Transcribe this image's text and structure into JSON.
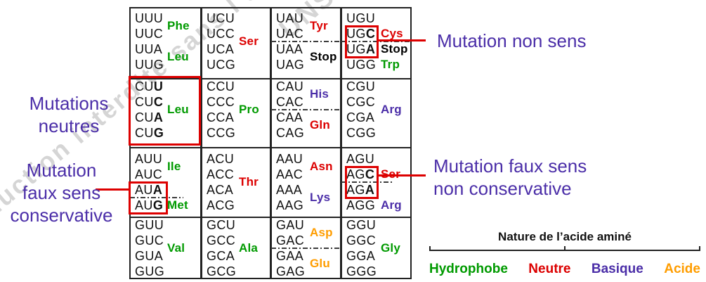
{
  "colors": {
    "hydrophobe": "#009a00",
    "neutre": "#dc0000",
    "basique": "#4b2ea8",
    "acide": "#ff9d00",
    "stop": "#000000",
    "annotation": "#4b2ea8",
    "highlight": "#dd0000",
    "watermark": "#cbcbcb"
  },
  "watermark": {
    "fragments": [
      {
        "text": "roduction interdite sans l’accord"
      },
      {
        "text": "UNS"
      }
    ]
  },
  "annotations": {
    "non_sens": {
      "lines": [
        "Mutation non sens"
      ]
    },
    "neutres": {
      "lines": [
        "Mutations",
        "neutres"
      ]
    },
    "faux_sens_conservative": {
      "lines": [
        "Mutation",
        "faux sens",
        "conservative"
      ]
    },
    "faux_sens_non_conservative": {
      "lines": [
        "Mutation faux sens",
        "non conservative"
      ]
    }
  },
  "legend": {
    "title": "Nature de l’acide aminé",
    "items": [
      {
        "label": "Hydrophobe",
        "category": "hydrophobe"
      },
      {
        "label": "Neutre",
        "category": "neutre"
      },
      {
        "label": "Basique",
        "category": "basique"
      },
      {
        "label": "Acide",
        "category": "acide"
      }
    ]
  },
  "codon_table": {
    "cells": [
      {
        "row": 1,
        "col": 1,
        "codons": [
          {
            "t": "UUU"
          },
          {
            "t": "UUC"
          },
          {
            "t": "UUA"
          },
          {
            "t": "UUG"
          }
        ],
        "labels": [
          {
            "t": "Phe",
            "cat": "hydrophobe",
            "pos": "p12"
          },
          {
            "t": "Leu",
            "cat": "hydrophobe",
            "pos": "p34"
          }
        ]
      },
      {
        "row": 1,
        "col": 2,
        "codons": [
          {
            "t": "UCU"
          },
          {
            "t": "UCC"
          },
          {
            "t": "UCA"
          },
          {
            "t": "UCG"
          }
        ],
        "labels": [
          {
            "t": "Ser",
            "cat": "neutre",
            "pos": "mid"
          }
        ]
      },
      {
        "row": 1,
        "col": 3,
        "codons": [
          {
            "t": "UAU"
          },
          {
            "t": "UAC"
          },
          {
            "t": "UAA"
          },
          {
            "t": "UAG"
          }
        ],
        "labels": [
          {
            "t": "Tyr",
            "cat": "neutre",
            "pos": "p12"
          },
          {
            "t": "Stop",
            "cat": "stop",
            "pos": "p34"
          }
        ],
        "divider_after": 2
      },
      {
        "row": 1,
        "col": 4,
        "codons": [
          {
            "t": "UGU"
          },
          {
            "t": "UGC",
            "bold_last": true
          },
          {
            "t": "UGA",
            "bold_last": true
          },
          {
            "t": "UGG"
          }
        ],
        "labels": [
          {
            "t": "Cys",
            "cat": "neutre",
            "pos": "l2"
          },
          {
            "t": "Stop",
            "cat": "stop",
            "pos": "l3"
          },
          {
            "t": "Trp",
            "cat": "hydrophobe",
            "pos": "l4"
          }
        ],
        "divider_after": 2,
        "red_box": {
          "lines": [
            2,
            3
          ]
        }
      },
      {
        "row": 2,
        "col": 1,
        "codons": [
          {
            "t": "CUU",
            "bold_last": true
          },
          {
            "t": "CUC",
            "bold_last": true
          },
          {
            "t": "CUA",
            "bold_last": true
          },
          {
            "t": "CUG",
            "bold_last": true
          }
        ],
        "labels": [
          {
            "t": "Leu",
            "cat": "hydrophobe",
            "pos": "mid"
          }
        ],
        "red_box": "all"
      },
      {
        "row": 2,
        "col": 2,
        "codons": [
          {
            "t": "CCU"
          },
          {
            "t": "CCC"
          },
          {
            "t": "CCA"
          },
          {
            "t": "CCG"
          }
        ],
        "labels": [
          {
            "t": "Pro",
            "cat": "hydrophobe",
            "pos": "mid"
          }
        ]
      },
      {
        "row": 2,
        "col": 3,
        "codons": [
          {
            "t": "CAU"
          },
          {
            "t": "CAC"
          },
          {
            "t": "CAA"
          },
          {
            "t": "CAG"
          }
        ],
        "labels": [
          {
            "t": "His",
            "cat": "basique",
            "pos": "p12"
          },
          {
            "t": "Gln",
            "cat": "neutre",
            "pos": "p34"
          }
        ],
        "divider_after": 2
      },
      {
        "row": 2,
        "col": 4,
        "codons": [
          {
            "t": "CGU"
          },
          {
            "t": "CGC"
          },
          {
            "t": "CGA"
          },
          {
            "t": "CGG"
          }
        ],
        "labels": [
          {
            "t": "Arg",
            "cat": "basique",
            "pos": "mid"
          }
        ]
      },
      {
        "row": 3,
        "col": 1,
        "codons": [
          {
            "t": "AUU"
          },
          {
            "t": "AUC"
          },
          {
            "t": "AUA",
            "bold_last": true
          },
          {
            "t": "AUG",
            "bold_last": true
          }
        ],
        "labels": [
          {
            "t": "Ile",
            "cat": "hydrophobe",
            "pos": "p12"
          },
          {
            "t": "Met",
            "cat": "hydrophobe",
            "pos": "l4"
          }
        ],
        "divider_after": 3,
        "red_box": {
          "lines": [
            3,
            4
          ]
        }
      },
      {
        "row": 3,
        "col": 2,
        "codons": [
          {
            "t": "ACU"
          },
          {
            "t": "ACC"
          },
          {
            "t": "ACA"
          },
          {
            "t": "ACG"
          }
        ],
        "labels": [
          {
            "t": "Thr",
            "cat": "neutre",
            "pos": "mid"
          }
        ]
      },
      {
        "row": 3,
        "col": 3,
        "codons": [
          {
            "t": "AAU"
          },
          {
            "t": "AAC"
          },
          {
            "t": "AAA"
          },
          {
            "t": "AAG"
          }
        ],
        "labels": [
          {
            "t": "Asn",
            "cat": "neutre",
            "pos": "p12"
          },
          {
            "t": "Lys",
            "cat": "basique",
            "pos": "p34"
          }
        ]
      },
      {
        "row": 3,
        "col": 4,
        "codons": [
          {
            "t": "AGU"
          },
          {
            "t": "AGC",
            "bold_last": true
          },
          {
            "t": "AGA",
            "bold_last": true
          },
          {
            "t": "AGG"
          }
        ],
        "labels": [
          {
            "t": "Ser",
            "cat": "neutre",
            "pos": "l2"
          },
          {
            "t": "Arg",
            "cat": "basique",
            "pos": "l4"
          }
        ],
        "divider_after": 2,
        "red_box": {
          "lines": [
            2,
            3
          ]
        }
      },
      {
        "row": 4,
        "col": 1,
        "codons": [
          {
            "t": "GUU"
          },
          {
            "t": "GUC"
          },
          {
            "t": "GUA"
          },
          {
            "t": "GUG"
          }
        ],
        "labels": [
          {
            "t": "Val",
            "cat": "hydrophobe",
            "pos": "mid"
          }
        ]
      },
      {
        "row": 4,
        "col": 2,
        "codons": [
          {
            "t": "GCU"
          },
          {
            "t": "GCC"
          },
          {
            "t": "GCA"
          },
          {
            "t": "GCG"
          }
        ],
        "labels": [
          {
            "t": "Ala",
            "cat": "hydrophobe",
            "pos": "mid"
          }
        ]
      },
      {
        "row": 4,
        "col": 3,
        "codons": [
          {
            "t": "GAU"
          },
          {
            "t": "GAC"
          },
          {
            "t": "GAA"
          },
          {
            "t": "GAG"
          }
        ],
        "labels": [
          {
            "t": "Asp",
            "cat": "acide",
            "pos": "p12"
          },
          {
            "t": "Glu",
            "cat": "acide",
            "pos": "p34"
          }
        ],
        "divider_after": 2
      },
      {
        "row": 4,
        "col": 4,
        "codons": [
          {
            "t": "GGU"
          },
          {
            "t": "GGC"
          },
          {
            "t": "GGA"
          },
          {
            "t": "GGG"
          }
        ],
        "labels": [
          {
            "t": "Gly",
            "cat": "hydrophobe",
            "pos": "mid"
          }
        ]
      }
    ]
  }
}
